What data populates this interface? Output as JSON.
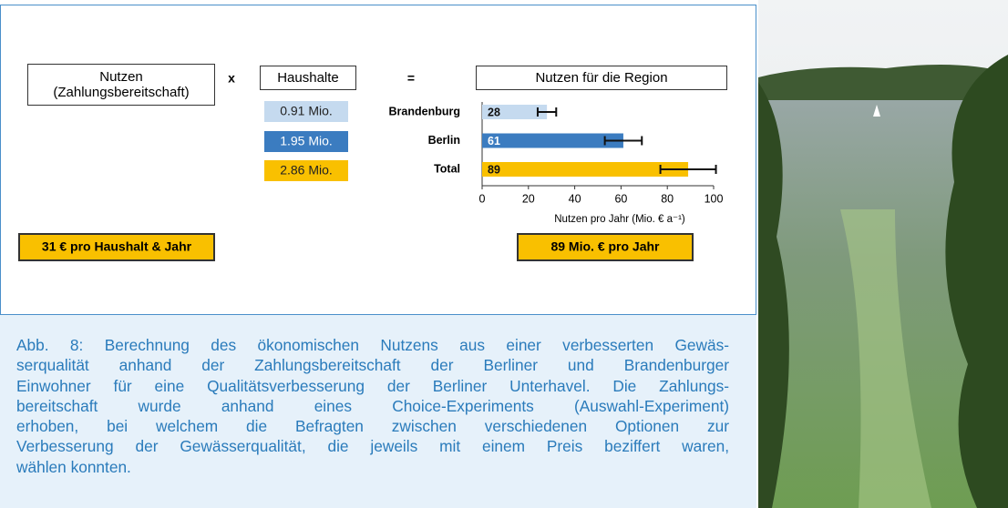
{
  "figure": {
    "factor_header": [
      "Nutzen",
      "(Zahlungsbereitschaft)"
    ],
    "times": "x",
    "households_header": "Haushalte",
    "equals": "=",
    "result_header": "Nutzen für die Region",
    "households": [
      "0.91 Mio.",
      "1.95 Mio.",
      "2.86 Mio."
    ],
    "per_household": "31 € pro Haushalt & Jahr",
    "total": "89 Mio. € pro Jahr"
  },
  "chart_data": {
    "type": "bar",
    "orientation": "horizontal",
    "categories": [
      "Brandenburg",
      "Berlin",
      "Total"
    ],
    "values": [
      28,
      61,
      89
    ],
    "errors": [
      4,
      8,
      12
    ],
    "colors": [
      "#c5daef",
      "#3b7cc0",
      "#f9c000"
    ],
    "xlim": [
      0,
      100
    ],
    "xticks": [
      0,
      20,
      40,
      60,
      80,
      100
    ],
    "xlabel": "Nutzen pro Jahr (Mio. € a⁻¹)"
  },
  "caption": [
    "Abb. 8: Berechnung des ökonomischen Nutzens aus einer verbesserten Gewäs-",
    "serqualität anhand der Zahlungsbereitschaft der Berliner und Brandenburger",
    "Einwohner für eine Qualitätsverbesserung der Berliner Unterhavel. Die Zahlungs-",
    "bereitschaft wurde anhand eines Choice-Experiments (Auswahl-Experiment)",
    "erhoben, bei welchem die Befragten zwischen verschiedenen Optionen zur",
    "Verbesserung der Gewässerqualität, die jeweils mit einem Preis beziffert waren,",
    "wählen konnten."
  ]
}
